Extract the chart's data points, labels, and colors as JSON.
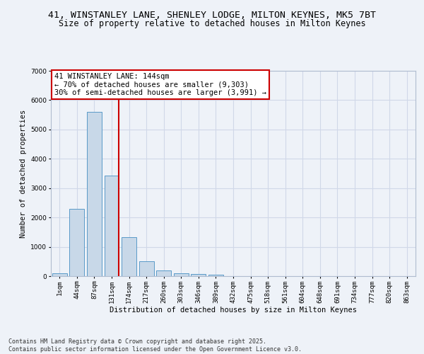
{
  "title_line1": "41, WINSTANLEY LANE, SHENLEY LODGE, MILTON KEYNES, MK5 7BT",
  "title_line2": "Size of property relative to detached houses in Milton Keynes",
  "xlabel": "Distribution of detached houses by size in Milton Keynes",
  "ylabel": "Number of detached properties",
  "categories": [
    "1sqm",
    "44sqm",
    "87sqm",
    "131sqm",
    "174sqm",
    "217sqm",
    "260sqm",
    "303sqm",
    "346sqm",
    "389sqm",
    "432sqm",
    "475sqm",
    "518sqm",
    "561sqm",
    "604sqm",
    "648sqm",
    "691sqm",
    "734sqm",
    "777sqm",
    "820sqm",
    "863sqm"
  ],
  "values": [
    100,
    2300,
    5600,
    3420,
    1330,
    500,
    190,
    100,
    75,
    40,
    0,
    0,
    0,
    0,
    0,
    0,
    0,
    0,
    0,
    0,
    0
  ],
  "bar_color": "#c8d8e8",
  "bar_edge_color": "#5a9ac8",
  "vline_color": "#cc0000",
  "vline_pos": 3.4,
  "annotation_box_text": "41 WINSTANLEY LANE: 144sqm\n← 70% of detached houses are smaller (9,303)\n30% of semi-detached houses are larger (3,991) →",
  "grid_color": "#d0d8e8",
  "background_color": "#eef2f8",
  "ylim": [
    0,
    7000
  ],
  "yticks": [
    0,
    1000,
    2000,
    3000,
    4000,
    5000,
    6000,
    7000
  ],
  "footnote": "Contains HM Land Registry data © Crown copyright and database right 2025.\nContains public sector information licensed under the Open Government Licence v3.0.",
  "title_fontsize": 9.5,
  "subtitle_fontsize": 8.5,
  "axis_label_fontsize": 7.5,
  "tick_fontsize": 6.5,
  "annotation_fontsize": 7.5,
  "footnote_fontsize": 6.0
}
